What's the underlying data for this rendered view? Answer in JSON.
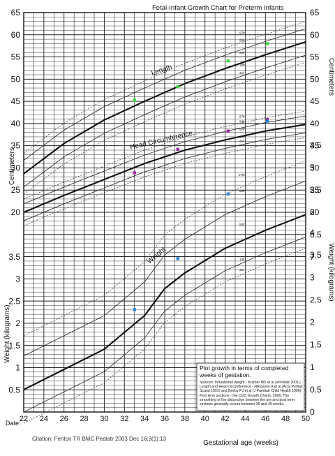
{
  "chart_data": {
    "type": "line",
    "title": "Fetal-Infant Growth Chart for Preterm Infants",
    "xlabel": "Gestational age (weeks)",
    "xlim": [
      22,
      50
    ],
    "x_ticks": [
      22,
      24,
      26,
      28,
      30,
      32,
      34,
      36,
      38,
      40,
      42,
      44,
      46,
      48,
      50
    ],
    "grid": true,
    "cm_axis": {
      "label": "Centimeters",
      "range": [
        20,
        65
      ],
      "ticks": [
        20,
        25,
        30,
        35,
        40,
        45,
        50,
        55,
        60,
        65
      ]
    },
    "weight_axis_left": {
      "label": "Weight (kilograms)",
      "range": [
        0,
        3.5
      ],
      "ticks": [
        "0.5",
        "1",
        "1.5",
        "2",
        "2.5",
        "3",
        "3.5"
      ]
    },
    "weight_axis_right_upper": {
      "label": "Centimeters",
      "ticks": [
        "4.5",
        "5",
        "5.5",
        "6",
        "6.5",
        "7"
      ]
    },
    "weight_axis_right_lower": {
      "label": "Weight (kilograms)",
      "ticks": [
        "0",
        "0.5",
        "1",
        "1.5",
        "2",
        "2.5",
        "3",
        "3.5",
        "4"
      ]
    },
    "series": [
      {
        "name": "Length",
        "percentile_labels": [
          "97th",
          "90th",
          "50th",
          "10th",
          "3rd"
        ],
        "x": [
          22,
          26,
          30,
          34,
          38,
          42,
          46,
          50
        ],
        "p50": [
          28.7,
          35.5,
          40.8,
          45.0,
          49.0,
          52.4,
          55.5,
          58.4
        ]
      },
      {
        "name": "Head Circumference",
        "percentile_labels": [
          "97th",
          "90th",
          "50th",
          "10th",
          "3rd"
        ],
        "x": [
          22,
          26,
          30,
          34,
          38,
          42,
          46,
          50
        ],
        "p50": [
          20.0,
          23.8,
          27.4,
          31.0,
          34.0,
          36.3,
          38.3,
          39.8
        ]
      },
      {
        "name": "Weight",
        "percentile_labels": [
          "97th",
          "90th",
          "50th",
          "10th",
          "3rd"
        ],
        "x": [
          22,
          26,
          30,
          34,
          36,
          38,
          42,
          46,
          50
        ],
        "p50": [
          0.5,
          0.95,
          1.4,
          2.15,
          2.75,
          3.1,
          3.65,
          4.05,
          4.4
        ]
      }
    ],
    "plotted_points": [
      {
        "series": "Length",
        "points": [
          {
            "x": 33,
            "y": 45.3
          },
          {
            "x": 37.3,
            "y": 48.3
          },
          {
            "x": 42.3,
            "y": 54.1
          },
          {
            "x": 46.2,
            "y": 58.0
          }
        ],
        "color": "#3ddc3d"
      },
      {
        "series": "Head Circumference",
        "points": [
          {
            "x": 33,
            "y": 28.9
          },
          {
            "x": 37.3,
            "y": 34.2
          },
          {
            "x": 42.3,
            "y": 38.3
          },
          {
            "x": 46.2,
            "y": 40.9
          }
        ],
        "color": "#9b2da0"
      },
      {
        "series": "Weight",
        "points": [
          {
            "x": 33,
            "y": 2.28
          },
          {
            "x": 37.3,
            "y": 3.42
          },
          {
            "x": 42.3,
            "y": 4.86
          },
          {
            "x": 46.2,
            "y": 6.48
          }
        ],
        "color": "#2a86d6"
      }
    ]
  },
  "note": {
    "heading": "Plot growth in terms of completed weeks of gestation.",
    "sources": "Sources: Intrauterine weight - Kramer MS et al (sPediatr 2001); Length and Head circumference - Niklasson A et al (Acta Pediatr Scand 1991) and Beeby PJ et al (J Paediatr Child Health 1996); Post term sections - the CDC Growth Charts, 2000. The smoothing of the disjunction between the pre and post term sections generally occurs between 36 and 46 weeks."
  },
  "footer": {
    "date_label": "Date:",
    "citation": "Citation: Fenton TR BMC Pediatr 2003 Dec 16;3(1):13"
  },
  "colors": {
    "grid": "#1a1a1a",
    "curve": "#111111",
    "length_dot": "#3ddc3d",
    "hc_dot": "#9b2da0",
    "weight_dot": "#2a86d6"
  }
}
